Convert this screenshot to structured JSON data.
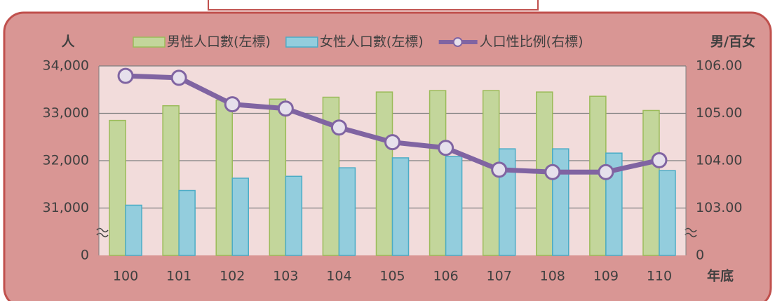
{
  "chart_data": {
    "type": "bar_line",
    "y_axis_title": "人",
    "y2_axis_title": "男/百女",
    "x_axis_title": "年底",
    "categories": [
      "100",
      "101",
      "102",
      "103",
      "104",
      "105",
      "106",
      "107",
      "108",
      "109",
      "110"
    ],
    "series": [
      {
        "name": "男性人口數(左標)",
        "type": "bar",
        "color": "#c3d69b",
        "edge": "#9bbb59",
        "values": [
          32850,
          33160,
          33280,
          33300,
          33340,
          33450,
          33480,
          33480,
          33450,
          33360,
          33060
        ]
      },
      {
        "name": "女性人口數(左標)",
        "type": "bar",
        "color": "#93cddd",
        "edge": "#4bacc6",
        "values": [
          31060,
          31370,
          31630,
          31670,
          31850,
          32060,
          32090,
          32250,
          32250,
          32160,
          31790
        ]
      },
      {
        "name": "人口性比例(右標)",
        "type": "line",
        "axis": "y2",
        "color": "#8064a2",
        "values": [
          105.79,
          105.75,
          105.19,
          105.1,
          104.7,
          104.39,
          104.27,
          103.81,
          103.76,
          103.76,
          104.01
        ]
      }
    ],
    "ylim": [
      30000,
      34000
    ],
    "yticks": [
      0,
      {
        "value": 31000,
        "label": "31,000"
      },
      {
        "value": 32000,
        "label": "32,000"
      },
      {
        "value": 33000,
        "label": "33,000"
      },
      {
        "value": 34000,
        "label": "34,000"
      }
    ],
    "y2lim": [
      102,
      106
    ],
    "y2ticks": [
      0,
      {
        "value": 103,
        "label": "103.00"
      },
      {
        "value": 104,
        "label": "104.00"
      },
      {
        "value": 105,
        "label": "105.00"
      },
      {
        "value": 106,
        "label": "106.00"
      }
    ],
    "axis_break": true,
    "grid": true,
    "legend": "top"
  }
}
